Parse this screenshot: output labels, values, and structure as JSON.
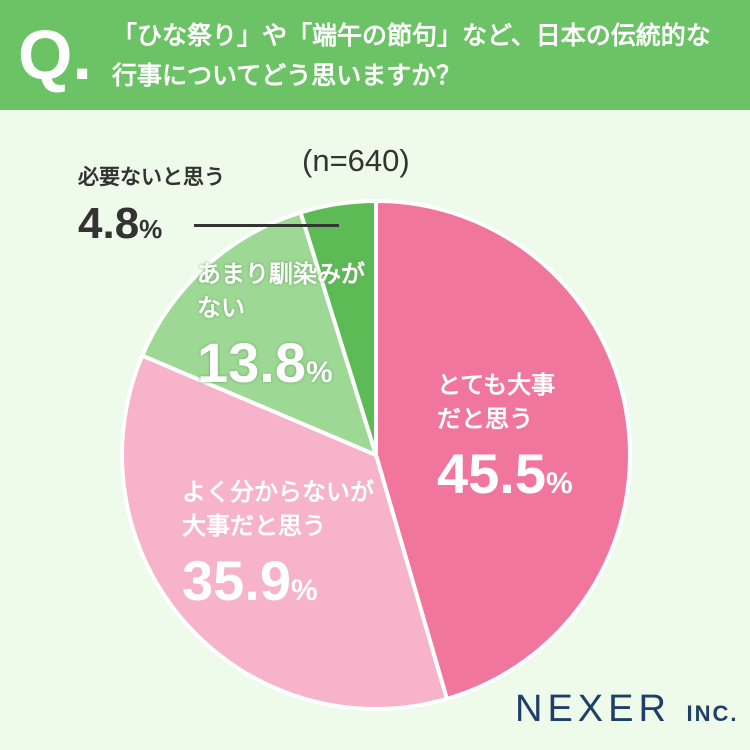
{
  "header": {
    "q_mark": "Q.",
    "question_line1": "「ひな祭り」や「端午の節句」など、日本の伝統的な",
    "question_line2": "行事についてどう思いますか？"
  },
  "brand": {
    "name": "NEXER",
    "suffix": "INC."
  },
  "colors": {
    "header_bg": "#6cc366",
    "page_bg": "#eefaea"
  },
  "chart_data": {
    "type": "pie",
    "title": "",
    "sample_size_label": "(n=640)",
    "unit": "%",
    "slices": [
      {
        "label_line1": "とても大事",
        "label_line2": "だと思う",
        "value": 45.5,
        "value_text": "45.5",
        "color": "#f0769e"
      },
      {
        "label_line1": "よく分からないが",
        "label_line2": "大事だと思う",
        "value": 35.9,
        "value_text": "35.9",
        "color": "#f7b3c9"
      },
      {
        "label_line1": "あまり馴染みが",
        "label_line2": "ない",
        "value": 13.8,
        "value_text": "13.8",
        "color": "#9ed895"
      },
      {
        "label_line1": "必要ないと思う",
        "label_line2": "",
        "value": 4.8,
        "value_text": "4.8",
        "color": "#5cbb55"
      }
    ]
  }
}
